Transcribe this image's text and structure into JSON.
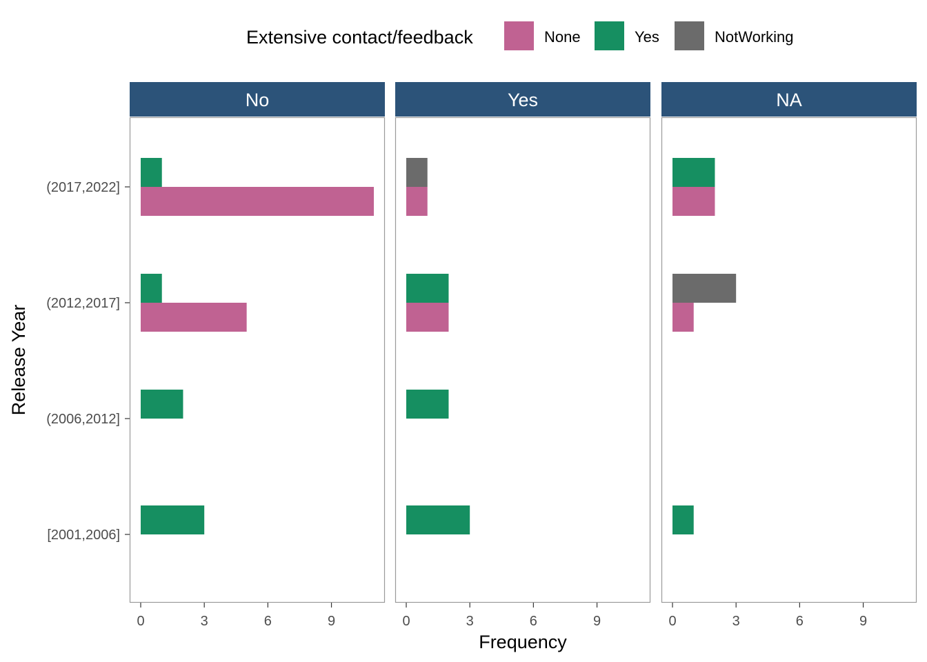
{
  "chart_data": {
    "type": "bar",
    "orientation": "horizontal",
    "faceted": true,
    "xlabel": "Frequency",
    "ylabel": "Release Year",
    "xlim": [
      0,
      11
    ],
    "xticks": [
      0,
      3,
      6,
      9
    ],
    "categories": [
      "[2001,2006]",
      "(2006,2012]",
      "(2012,2017]",
      "(2017,2022]"
    ],
    "legend": {
      "title": "Extensive contact/feedback",
      "position": "top",
      "entries": [
        {
          "name": "None",
          "color": "#C06292"
        },
        {
          "name": "Yes",
          "color": "#168F61"
        },
        {
          "name": "NotWorking",
          "color": "#6B6B6B"
        }
      ]
    },
    "grid": false,
    "facets": [
      {
        "label": "No",
        "bars": [
          {
            "category": "(2017,2022]",
            "group": "Yes",
            "value": 1
          },
          {
            "category": "(2017,2022]",
            "group": "None",
            "value": 11
          },
          {
            "category": "(2012,2017]",
            "group": "Yes",
            "value": 1
          },
          {
            "category": "(2012,2017]",
            "group": "None",
            "value": 5
          },
          {
            "category": "(2006,2012]",
            "group": "Yes",
            "value": 2
          },
          {
            "category": "[2001,2006]",
            "group": "Yes",
            "value": 3
          }
        ]
      },
      {
        "label": "Yes",
        "bars": [
          {
            "category": "(2017,2022]",
            "group": "NotWorking",
            "value": 1
          },
          {
            "category": "(2017,2022]",
            "group": "None",
            "value": 1
          },
          {
            "category": "(2012,2017]",
            "group": "Yes",
            "value": 2
          },
          {
            "category": "(2012,2017]",
            "group": "None",
            "value": 2
          },
          {
            "category": "(2006,2012]",
            "group": "Yes",
            "value": 2
          },
          {
            "category": "[2001,2006]",
            "group": "Yes",
            "value": 3
          }
        ]
      },
      {
        "label": "NA",
        "bars": [
          {
            "category": "(2017,2022]",
            "group": "Yes",
            "value": 2
          },
          {
            "category": "(2017,2022]",
            "group": "None",
            "value": 2
          },
          {
            "category": "(2012,2017]",
            "group": "NotWorking",
            "value": 3
          },
          {
            "category": "(2012,2017]",
            "group": "None",
            "value": 1
          },
          {
            "category": "[2001,2006]",
            "group": "Yes",
            "value": 1
          }
        ]
      }
    ],
    "strip_color": "#2C5379",
    "panel_border_color": "#999999"
  }
}
